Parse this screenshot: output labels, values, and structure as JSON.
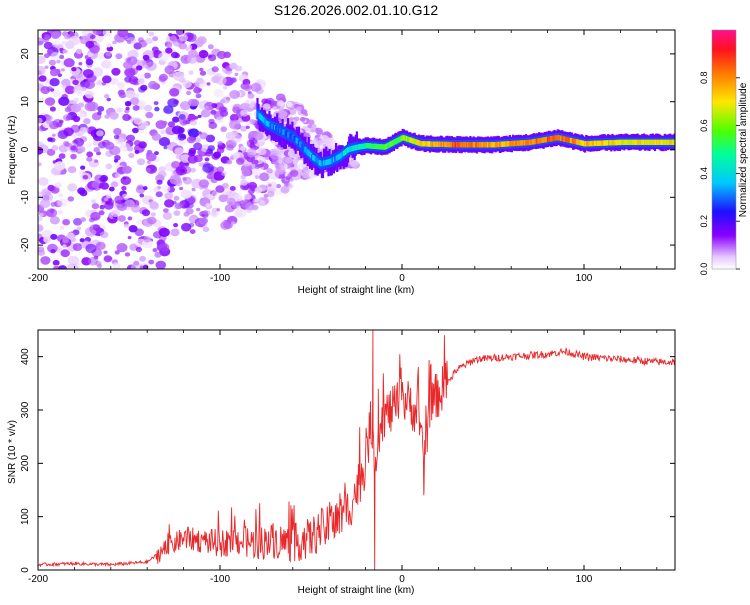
{
  "title": "S126.2026.002.01.10.G12",
  "chart_data": [
    {
      "type": "heatmap",
      "title": "S126.2026.002.01.10.G12",
      "xlabel": "Height of straight line (km)",
      "ylabel": "Frequency (Hz)",
      "xlim": [
        -200,
        150
      ],
      "ylim": [
        -25,
        25
      ],
      "x_ticks": [
        -200,
        -100,
        0,
        100
      ],
      "x_tick_labels": [
        "-200",
        "-100",
        "0",
        "100"
      ],
      "y_ticks": [
        -20,
        -10,
        0,
        10,
        20
      ],
      "y_tick_labels": [
        "-20",
        "-10",
        "0",
        "10",
        "20"
      ],
      "colorbar": {
        "label": "Normalized spectral amplitude",
        "range": [
          0,
          1
        ],
        "ticks": [
          0,
          0.2,
          0.4,
          0.6,
          0.8
        ],
        "tick_labels": [
          "0.0",
          "0.2",
          "0.4",
          "0.6",
          "0.8"
        ],
        "colormap": "rainbow (white-violet-blue-cyan-green-yellow-red-magenta)"
      },
      "ridge": [
        {
          "x": -80,
          "y": 7.5,
          "v": 0.35
        },
        {
          "x": -75,
          "y": 5.5,
          "v": 0.35
        },
        {
          "x": -70,
          "y": 4.5,
          "v": 0.3
        },
        {
          "x": -65,
          "y": 3.5,
          "v": 0.3
        },
        {
          "x": -60,
          "y": 2.5,
          "v": 0.3
        },
        {
          "x": -55,
          "y": 0.5,
          "v": 0.3
        },
        {
          "x": -50,
          "y": -1.5,
          "v": 0.35
        },
        {
          "x": -45,
          "y": -3,
          "v": 0.35
        },
        {
          "x": -40,
          "y": -2.5,
          "v": 0.35
        },
        {
          "x": -35,
          "y": -1.5,
          "v": 0.35
        },
        {
          "x": -30,
          "y": 0,
          "v": 0.4
        },
        {
          "x": -25,
          "y": 0.5,
          "v": 0.4
        },
        {
          "x": -20,
          "y": 0.8,
          "v": 0.5
        },
        {
          "x": -10,
          "y": 0.5,
          "v": 0.55
        },
        {
          "x": -5,
          "y": 1.5,
          "v": 0.55
        },
        {
          "x": 0,
          "y": 2.5,
          "v": 0.6
        },
        {
          "x": 10,
          "y": 1.2,
          "v": 0.7
        },
        {
          "x": 30,
          "y": 1,
          "v": 0.85
        },
        {
          "x": 50,
          "y": 1,
          "v": 0.75
        },
        {
          "x": 70,
          "y": 1.5,
          "v": 0.8
        },
        {
          "x": 85,
          "y": 2.5,
          "v": 0.85
        },
        {
          "x": 100,
          "y": 1.2,
          "v": 0.75
        },
        {
          "x": 120,
          "y": 1.5,
          "v": 0.7
        },
        {
          "x": 150,
          "y": 1.5,
          "v": 0.7
        }
      ],
      "noise_region": {
        "x_range": [
          -200,
          -30
        ],
        "y_range": [
          -25,
          25
        ],
        "amplitude": "low (0.0-0.2)"
      }
    },
    {
      "type": "line",
      "xlabel": "Height of straight line (km)",
      "ylabel": "SNR (10 * v/v)",
      "xlim": [
        -200,
        150
      ],
      "ylim": [
        0,
        450
      ],
      "x_ticks": [
        -200,
        -100,
        0,
        100
      ],
      "x_tick_labels": [
        "-200",
        "-100",
        "0",
        "100"
      ],
      "y_ticks": [
        0,
        100,
        200,
        300,
        400
      ],
      "y_tick_labels": [
        "0",
        "100",
        "200",
        "300",
        "400"
      ],
      "color": "#e8282a",
      "series": [
        {
          "name": "SNR",
          "x": [
            -200,
            -180,
            -160,
            -140,
            -130,
            -120,
            -110,
            -100,
            -90,
            -80,
            -70,
            -60,
            -50,
            -45,
            -40,
            -35,
            -30,
            -25,
            -20,
            -17,
            -15,
            -13,
            -10,
            -5,
            0,
            5,
            10,
            12,
            15,
            20,
            25,
            30,
            40,
            60,
            80,
            90,
            100,
            120,
            140,
            150
          ],
          "y": [
            10,
            12,
            10,
            15,
            40,
            60,
            55,
            50,
            55,
            50,
            55,
            50,
            60,
            75,
            80,
            95,
            110,
            150,
            200,
            280,
            200,
            260,
            290,
            300,
            320,
            310,
            280,
            180,
            310,
            330,
            350,
            375,
            395,
            400,
            405,
            410,
            400,
            395,
            390,
            390
          ]
        }
      ],
      "spikes": [
        {
          "x": -16,
          "y": 450
        },
        {
          "x": -15,
          "y": 0
        },
        {
          "x": -13,
          "y": 340
        },
        {
          "x": 12,
          "y": 140
        }
      ]
    }
  ]
}
